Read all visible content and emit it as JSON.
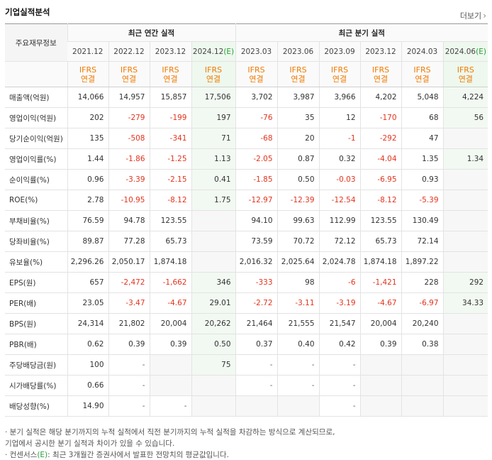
{
  "title": "기업실적분석",
  "more_label": "더보기",
  "header": {
    "row_label": "주요재무정보",
    "annual_group": "최근 연간 실적",
    "quarter_group": "최근 분기 실적",
    "periods": [
      {
        "base": "2021.12",
        "est": ""
      },
      {
        "base": "2022.12",
        "est": ""
      },
      {
        "base": "2023.12",
        "est": ""
      },
      {
        "base": "2024.12",
        "est": "(E)"
      },
      {
        "base": "2023.03",
        "est": ""
      },
      {
        "base": "2023.06",
        "est": ""
      },
      {
        "base": "2023.09",
        "est": ""
      },
      {
        "base": "2023.12",
        "est": ""
      },
      {
        "base": "2024.03",
        "est": ""
      },
      {
        "base": "2024.06",
        "est": "(E)"
      }
    ],
    "ifrs_line1": "IFRS",
    "ifrs_line2": "연결"
  },
  "rows": [
    {
      "label": "매출액(억원)",
      "values": [
        "14,066",
        "14,957",
        "15,857",
        "17,506",
        "3,702",
        "3,987",
        "3,966",
        "4,202",
        "5,048",
        "4,224"
      ]
    },
    {
      "label": "영업이익(억원)",
      "values": [
        "202",
        "-279",
        "-199",
        "197",
        "-76",
        "35",
        "12",
        "-170",
        "68",
        "56"
      ]
    },
    {
      "label": "당기순이익(억원)",
      "values": [
        "135",
        "-508",
        "-341",
        "71",
        "-68",
        "20",
        "-1",
        "-292",
        "47",
        ""
      ]
    },
    {
      "label": "영업이익률(%)",
      "values": [
        "1.44",
        "-1.86",
        "-1.25",
        "1.13",
        "-2.05",
        "0.87",
        "0.32",
        "-4.04",
        "1.35",
        "1.34"
      ]
    },
    {
      "label": "순이익률(%)",
      "values": [
        "0.96",
        "-3.39",
        "-2.15",
        "0.41",
        "-1.85",
        "0.50",
        "-0.03",
        "-6.95",
        "0.93",
        ""
      ]
    },
    {
      "label": "ROE(%)",
      "values": [
        "2.78",
        "-10.95",
        "-8.12",
        "1.75",
        "-12.97",
        "-12.39",
        "-12.54",
        "-8.12",
        "-5.39",
        ""
      ]
    },
    {
      "label": "부채비율(%)",
      "values": [
        "76.59",
        "94.78",
        "123.55",
        "",
        "94.10",
        "99.63",
        "112.99",
        "123.55",
        "130.49",
        ""
      ]
    },
    {
      "label": "당좌비율(%)",
      "values": [
        "89.87",
        "77.28",
        "65.73",
        "",
        "73.59",
        "70.72",
        "72.12",
        "65.73",
        "72.14",
        ""
      ]
    },
    {
      "label": "유보율(%)",
      "values": [
        "2,296.26",
        "2,050.17",
        "1,874.18",
        "",
        "2,016.32",
        "2,025.64",
        "2,024.78",
        "1,874.18",
        "1,897.22",
        ""
      ]
    },
    {
      "label": "EPS(원)",
      "values": [
        "657",
        "-2,472",
        "-1,662",
        "346",
        "-333",
        "98",
        "-6",
        "-1,421",
        "228",
        "292"
      ]
    },
    {
      "label": "PER(배)",
      "values": [
        "23.05",
        "-3.47",
        "-4.67",
        "29.01",
        "-2.72",
        "-3.11",
        "-3.19",
        "-4.67",
        "-6.97",
        "34.33"
      ]
    },
    {
      "label": "BPS(원)",
      "values": [
        "24,314",
        "21,802",
        "20,004",
        "20,262",
        "21,464",
        "21,555",
        "21,547",
        "20,004",
        "20,240",
        ""
      ]
    },
    {
      "label": "PBR(배)",
      "values": [
        "0.62",
        "0.39",
        "0.39",
        "0.50",
        "0.37",
        "0.40",
        "0.42",
        "0.39",
        "0.38",
        ""
      ]
    },
    {
      "label": "주당배당금(원)",
      "values": [
        "100",
        "-",
        "",
        "75",
        "-",
        "-",
        "-",
        "",
        "",
        ""
      ]
    },
    {
      "label": "시가배당률(%)",
      "values": [
        "0.66",
        "-",
        "",
        "",
        "-",
        "-",
        "-",
        "",
        "",
        ""
      ]
    },
    {
      "label": "배당성향(%)",
      "values": [
        "14.90",
        "-",
        "-",
        "",
        "",
        "",
        "-",
        "",
        "",
        ""
      ]
    }
  ],
  "notes": {
    "line1": "· 분기 실적은 해당 분기까지의 누적 실적에서 직전 분기까지의 누적 실적을 차감하는 방식으로 계산되므로,",
    "line2": "  기업에서 공시한 분기 실적과 차이가 있을 수 있습니다.",
    "line3_prefix": "· 컨센서스",
    "line3_e": "(E)",
    "line3_suffix": ": 최근 3개월간 증권사에서 발표한 전망치의 평균값입니다."
  },
  "colors": {
    "negative": "#e2341e",
    "ifrs": "#f07a00",
    "estimate_marker": "#2a9d3a"
  }
}
